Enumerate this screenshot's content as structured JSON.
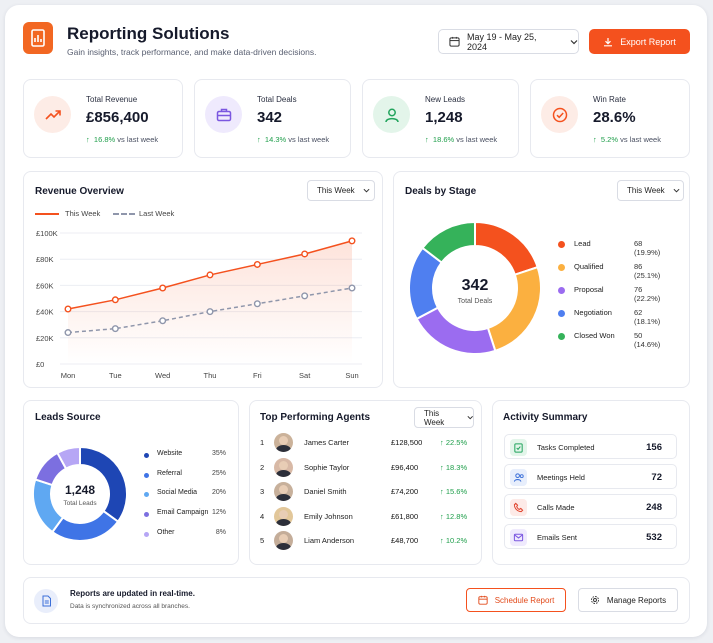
{
  "header": {
    "title": "Reporting Solutions",
    "subtitle": "Gain insights, track performance, and make data-driven decisions.",
    "date_range": "May 19 - May 25, 2024",
    "export_label": "Export Report"
  },
  "kpis": [
    {
      "label": "Total Revenue",
      "value": "£856,400",
      "change": "16.8%",
      "suffix": "vs last week",
      "icon": "trend-up-icon",
      "color": "#f4511e"
    },
    {
      "label": "Total Deals",
      "value": "342",
      "change": "14.3%",
      "suffix": "vs last week",
      "icon": "briefcase-icon",
      "color": "#7b57e0"
    },
    {
      "label": "New Leads",
      "value": "1,248",
      "change": "18.6%",
      "suffix": "vs last week",
      "icon": "user-icon",
      "color": "#22a45d"
    },
    {
      "label": "Win Rate",
      "value": "28.6%",
      "change": "5.2%",
      "suffix": "vs last week",
      "icon": "check-circle-icon",
      "color": "#f4511e"
    }
  ],
  "revenue": {
    "title": "Revenue Overview",
    "period": "This Week",
    "legend_this": "This Week",
    "legend_last": "Last Week"
  },
  "deals": {
    "title": "Deals by Stage",
    "period": "This Week",
    "center_value": "342",
    "center_label": "Total Deals",
    "stages": [
      {
        "name": "Lead",
        "count": "68 (19.9%)"
      },
      {
        "name": "Qualified",
        "count": "86 (25.1%)"
      },
      {
        "name": "Proposal",
        "count": "76 (22.2%)"
      },
      {
        "name": "Negotiation",
        "count": "62 (18.1%)"
      },
      {
        "name": "Closed Won",
        "count": "50 (14.6%)"
      }
    ]
  },
  "leads": {
    "title": "Leads Source",
    "center_value": "1,248",
    "center_label": "Total Leads",
    "sources": [
      {
        "name": "Website",
        "pct": "35%"
      },
      {
        "name": "Referral",
        "pct": "25%"
      },
      {
        "name": "Social Media",
        "pct": "20%"
      },
      {
        "name": "Email Campaign",
        "pct": "12%"
      },
      {
        "name": "Other",
        "pct": "8%"
      }
    ]
  },
  "agents": {
    "title": "Top Performing Agents",
    "period": "This Week",
    "rows": [
      {
        "rank": "1",
        "name": "James Carter",
        "revenue": "£128,500",
        "growth": "22.5%"
      },
      {
        "rank": "2",
        "name": "Sophie Taylor",
        "revenue": "£96,400",
        "growth": "18.3%"
      },
      {
        "rank": "3",
        "name": "Daniel Smith",
        "revenue": "£74,200",
        "growth": "15.6%"
      },
      {
        "rank": "4",
        "name": "Emily Johnson",
        "revenue": "£61,800",
        "growth": "12.8%"
      },
      {
        "rank": "5",
        "name": "Liam Anderson",
        "revenue": "£48,700",
        "growth": "10.2%"
      }
    ]
  },
  "activity": {
    "title": "Activity Summary",
    "items": [
      {
        "name": "Tasks Completed",
        "value": "156",
        "icon": "clipboard-check-icon",
        "color": "#22a45d"
      },
      {
        "name": "Meetings Held",
        "value": "72",
        "icon": "users-icon",
        "color": "#3b6fd8"
      },
      {
        "name": "Calls Made",
        "value": "248",
        "icon": "phone-icon",
        "color": "#e0412b"
      },
      {
        "name": "Emails Sent",
        "value": "532",
        "icon": "mail-icon",
        "color": "#7b57e0"
      }
    ]
  },
  "footer": {
    "title": "Reports are updated in real-time.",
    "subtitle": "Data is synchronized across all branches.",
    "schedule_label": "Schedule Report",
    "manage_label": "Manage Reports"
  },
  "chart_data": [
    {
      "type": "line",
      "categories": [
        "Mon",
        "Tue",
        "Wed",
        "Thu",
        "Fri",
        "Sat",
        "Sun"
      ],
      "series": [
        {
          "name": "This Week",
          "values": [
            42000,
            49000,
            58000,
            68000,
            76000,
            84000,
            94000
          ],
          "color": "#f4511e"
        },
        {
          "name": "Last Week",
          "values": [
            24000,
            27000,
            33000,
            40000,
            46000,
            52000,
            58000
          ],
          "color": "#8f96ab"
        }
      ],
      "y_tick_labels": [
        "£0",
        "£20K",
        "£40K",
        "£60K",
        "£80K",
        "£100K"
      ],
      "ylim": [
        0,
        100000
      ],
      "grid": true,
      "legend": "top-left"
    },
    {
      "type": "pie",
      "categories": [
        "Lead",
        "Qualified",
        "Proposal",
        "Negotiation",
        "Closed Won"
      ],
      "values": [
        68,
        86,
        76,
        62,
        50
      ],
      "colors": [
        "#f4511e",
        "#fbb040",
        "#9b6cf0",
        "#4f7ff0",
        "#35b25a"
      ]
    },
    {
      "type": "pie",
      "categories": [
        "Website",
        "Referral",
        "Social Media",
        "Email Campaign",
        "Other"
      ],
      "values": [
        35,
        25,
        20,
        12,
        8
      ],
      "colors": [
        "#1e46b4",
        "#3f74e6",
        "#5fa8f2",
        "#7c6fe0",
        "#b6a6f5"
      ]
    }
  ]
}
